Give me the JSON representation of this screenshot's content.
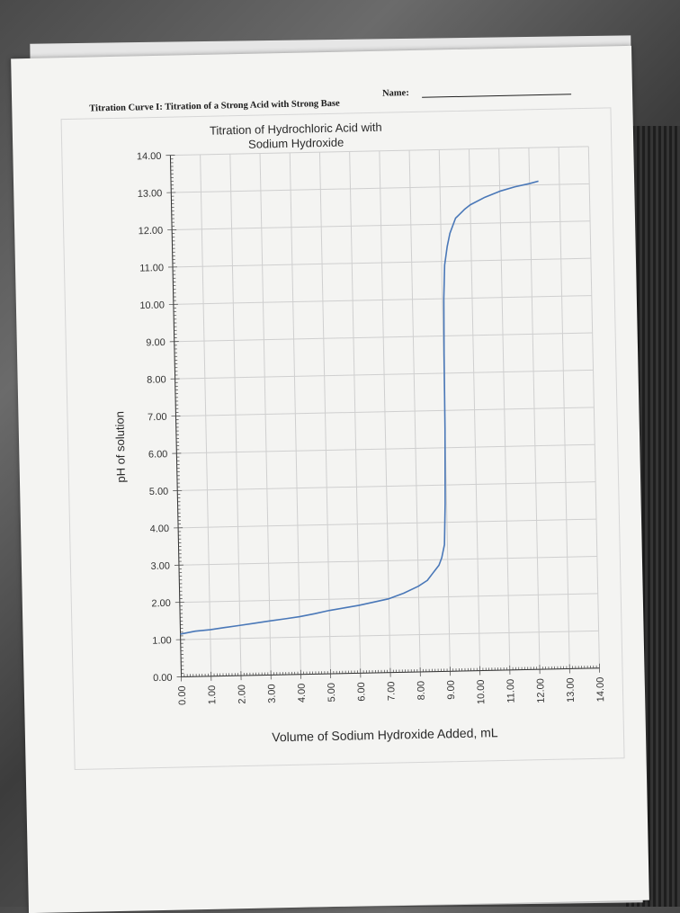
{
  "worksheet": {
    "title": "Titration Curve I:  Titration of a Strong Acid with Strong Base",
    "name_label": "Name:"
  },
  "chart_data": {
    "type": "line",
    "title": "Titration of Hydrochloric Acid with Sodium Hydroxide",
    "title_lines": [
      "Titration of Hydrochloric Acid with",
      "Sodium Hydroxide"
    ],
    "xlabel": "Volume of Sodium Hydroxide Added, mL",
    "ylabel": "pH of solution",
    "xlim": [
      0,
      14
    ],
    "ylim": [
      0,
      14
    ],
    "x_ticks": [
      "0.00",
      "1.00",
      "2.00",
      "3.00",
      "4.00",
      "5.00",
      "6.00",
      "7.00",
      "8.00",
      "9.00",
      "10.00",
      "11.00",
      "12.00",
      "13.00",
      "14.00"
    ],
    "y_ticks": [
      "0.00",
      "1.00",
      "2.00",
      "3.00",
      "4.00",
      "5.00",
      "6.00",
      "7.00",
      "8.00",
      "9.00",
      "10.00",
      "11.00",
      "12.00",
      "13.00",
      "14.00"
    ],
    "grid": true,
    "line_color": "#4a78b8",
    "series": [
      {
        "x": [
          0.0,
          0.5,
          1.0,
          1.5,
          2.0,
          2.5,
          3.0,
          3.5,
          4.0,
          4.5,
          5.0,
          5.5,
          6.0,
          6.5,
          7.0,
          7.5,
          8.0,
          8.3,
          8.5,
          8.7,
          8.8,
          8.9,
          8.95,
          9.0,
          9.02,
          9.05,
          9.1,
          9.2,
          9.3,
          9.5,
          9.8,
          10.0,
          10.5,
          11.0,
          11.5,
          12.0,
          12.3
        ],
        "y": [
          1.15,
          1.22,
          1.25,
          1.3,
          1.35,
          1.4,
          1.45,
          1.5,
          1.55,
          1.62,
          1.7,
          1.76,
          1.82,
          1.9,
          1.98,
          2.12,
          2.3,
          2.45,
          2.65,
          2.85,
          3.05,
          3.4,
          4.5,
          6.5,
          8.5,
          10.0,
          10.9,
          11.4,
          11.75,
          12.15,
          12.38,
          12.5,
          12.7,
          12.85,
          12.96,
          13.04,
          13.1
        ]
      }
    ]
  }
}
